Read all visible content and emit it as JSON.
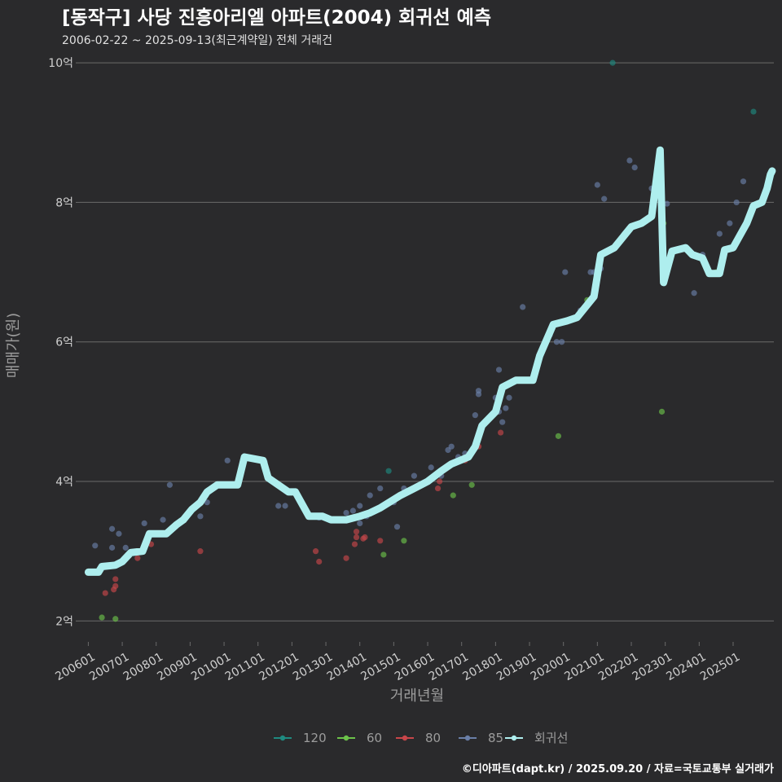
{
  "header": {
    "title": "[동작구] 사당 진흥아리엘 아파트(2004) 회귀선 예측",
    "subtitle": "2006-02-22 ~ 2025-09-13(최근계약일) 전체 거래건"
  },
  "footer": {
    "credit": "©디아파트(dapt.kr) / 2025.09.20 / 자료=국토교통부 실거래가"
  },
  "colors": {
    "background": "#2a2a2c",
    "grid": "#6a6a6a",
    "s120": "#1f8a80",
    "s60": "#6cc24a",
    "s80": "#c8464a",
    "s85": "#6a7fa8",
    "regression": "#aeeeee"
  },
  "chart_data": {
    "type": "scatter",
    "title": "[동작구] 사당 진흥아리엘 아파트(2004) 회귀선 예측",
    "subtitle": "2006-02-22 ~ 2025-09-13(최근계약일) 전체 거래건",
    "xlabel": "거래년월",
    "ylabel": "매매가(원)",
    "ylim": [
      1.7,
      10.2
    ],
    "yticks": [
      2,
      4,
      6,
      8,
      10
    ],
    "ytick_labels": [
      "2억",
      "4억",
      "6억",
      "8억",
      "10억"
    ],
    "xlim": [
      2005.75,
      2026.2
    ],
    "xticks": [
      2006,
      2007,
      2008,
      2009,
      2010,
      2011,
      2012,
      2013,
      2014,
      2015,
      2016,
      2017,
      2018,
      2019,
      2020,
      2021,
      2022,
      2023,
      2024,
      2025
    ],
    "xtick_labels": [
      "200601",
      "200701",
      "200801",
      "200901",
      "201001",
      "201101",
      "201201",
      "201301",
      "201401",
      "201501",
      "201601",
      "201701",
      "201801",
      "201901",
      "202001",
      "202101",
      "202201",
      "202301",
      "202401",
      "202501"
    ],
    "grid": true,
    "legend_position": "bottom",
    "series": [
      {
        "name": "120",
        "points": [
          [
            2014.85,
            4.15
          ],
          [
            2021.45,
            10.0
          ],
          [
            2025.6,
            9.3
          ]
        ]
      },
      {
        "name": "60",
        "points": [
          [
            2006.4,
            2.05
          ],
          [
            2006.8,
            2.03
          ],
          [
            2007.2,
            2.95
          ],
          [
            2014.7,
            2.95
          ],
          [
            2015.3,
            3.15
          ],
          [
            2016.75,
            3.8
          ],
          [
            2017.3,
            3.95
          ],
          [
            2019.85,
            4.65
          ],
          [
            2020.7,
            6.6
          ],
          [
            2022.9,
            5.0
          ],
          [
            2022.95,
            7.7
          ],
          [
            2024.5,
            7.0
          ]
        ]
      },
      {
        "name": "80",
        "points": [
          [
            2006.5,
            2.4
          ],
          [
            2006.75,
            2.45
          ],
          [
            2006.8,
            2.5
          ],
          [
            2006.8,
            2.6
          ],
          [
            2007.45,
            2.9
          ],
          [
            2007.85,
            3.1
          ],
          [
            2009.3,
            3.0
          ],
          [
            2012.7,
            3.0
          ],
          [
            2012.8,
            2.85
          ],
          [
            2013.6,
            2.9
          ],
          [
            2013.85,
            3.1
          ],
          [
            2013.9,
            3.2
          ],
          [
            2013.9,
            3.28
          ],
          [
            2014.1,
            3.18
          ],
          [
            2014.15,
            3.2
          ],
          [
            2014.6,
            3.15
          ],
          [
            2016.3,
            3.9
          ],
          [
            2016.35,
            4.0
          ],
          [
            2017.1,
            4.3
          ],
          [
            2017.5,
            4.5
          ],
          [
            2018.15,
            4.7
          ]
        ]
      },
      {
        "name": "85",
        "points": [
          [
            2006.2,
            3.08
          ],
          [
            2006.7,
            3.05
          ],
          [
            2006.9,
            3.25
          ],
          [
            2006.7,
            3.32
          ],
          [
            2007.1,
            3.05
          ],
          [
            2007.65,
            3.4
          ],
          [
            2008.2,
            3.45
          ],
          [
            2008.4,
            3.95
          ],
          [
            2009.3,
            3.5
          ],
          [
            2009.5,
            3.7
          ],
          [
            2010.1,
            4.3
          ],
          [
            2010.6,
            4.35
          ],
          [
            2011.2,
            4.28
          ],
          [
            2011.6,
            3.65
          ],
          [
            2011.8,
            3.65
          ],
          [
            2012.8,
            3.48
          ],
          [
            2013.1,
            3.45
          ],
          [
            2013.6,
            3.55
          ],
          [
            2013.8,
            3.58
          ],
          [
            2014.0,
            3.65
          ],
          [
            2014.0,
            3.4
          ],
          [
            2014.2,
            3.5
          ],
          [
            2014.3,
            3.8
          ],
          [
            2014.5,
            3.6
          ],
          [
            2014.6,
            3.9
          ],
          [
            2015.0,
            3.7
          ],
          [
            2015.1,
            3.35
          ],
          [
            2015.3,
            3.9
          ],
          [
            2015.6,
            4.08
          ],
          [
            2016.1,
            4.2
          ],
          [
            2016.4,
            4.08
          ],
          [
            2016.6,
            4.45
          ],
          [
            2016.7,
            4.5
          ],
          [
            2016.9,
            4.35
          ],
          [
            2017.1,
            4.4
          ],
          [
            2017.4,
            4.95
          ],
          [
            2017.5,
            5.25
          ],
          [
            2017.5,
            5.3
          ],
          [
            2017.8,
            4.9
          ],
          [
            2018.0,
            5.2
          ],
          [
            2018.1,
            5.0
          ],
          [
            2018.1,
            5.6
          ],
          [
            2018.2,
            4.85
          ],
          [
            2018.3,
            5.05
          ],
          [
            2018.4,
            5.2
          ],
          [
            2018.55,
            5.45
          ],
          [
            2018.8,
            6.5
          ],
          [
            2019.6,
            6.1
          ],
          [
            2019.8,
            6.0
          ],
          [
            2019.95,
            6.0
          ],
          [
            2020.05,
            7.0
          ],
          [
            2020.5,
            6.45
          ],
          [
            2020.8,
            7.0
          ],
          [
            2020.9,
            7.0
          ],
          [
            2021.0,
            8.25
          ],
          [
            2021.1,
            7.05
          ],
          [
            2021.2,
            8.05
          ],
          [
            2021.95,
            8.6
          ],
          [
            2022.1,
            8.5
          ],
          [
            2022.6,
            8.2
          ],
          [
            2023.05,
            7.98
          ],
          [
            2023.85,
            6.7
          ],
          [
            2024.1,
            7.25
          ],
          [
            2024.6,
            7.55
          ],
          [
            2024.9,
            7.7
          ],
          [
            2025.1,
            8.0
          ],
          [
            2025.3,
            8.3
          ]
        ]
      },
      {
        "name": "회귀선",
        "points": [
          [
            2006.0,
            2.7
          ],
          [
            2006.3,
            2.7
          ],
          [
            2006.4,
            2.78
          ],
          [
            2006.8,
            2.8
          ],
          [
            2007.0,
            2.85
          ],
          [
            2007.25,
            2.98
          ],
          [
            2007.6,
            3.0
          ],
          [
            2007.8,
            3.25
          ],
          [
            2008.3,
            3.25
          ],
          [
            2008.6,
            3.38
          ],
          [
            2008.8,
            3.45
          ],
          [
            2009.05,
            3.6
          ],
          [
            2009.3,
            3.7
          ],
          [
            2009.5,
            3.85
          ],
          [
            2009.8,
            3.95
          ],
          [
            2010.4,
            3.95
          ],
          [
            2010.6,
            4.35
          ],
          [
            2011.15,
            4.3
          ],
          [
            2011.3,
            4.05
          ],
          [
            2011.9,
            3.85
          ],
          [
            2012.1,
            3.85
          ],
          [
            2012.5,
            3.5
          ],
          [
            2012.9,
            3.5
          ],
          [
            2013.15,
            3.45
          ],
          [
            2013.6,
            3.45
          ],
          [
            2014.0,
            3.5
          ],
          [
            2014.3,
            3.55
          ],
          [
            2014.6,
            3.62
          ],
          [
            2015.2,
            3.8
          ],
          [
            2015.6,
            3.9
          ],
          [
            2016.0,
            4.0
          ],
          [
            2016.4,
            4.15
          ],
          [
            2016.7,
            4.25
          ],
          [
            2017.2,
            4.35
          ],
          [
            2017.4,
            4.5
          ],
          [
            2017.6,
            4.8
          ],
          [
            2018.0,
            5.0
          ],
          [
            2018.2,
            5.35
          ],
          [
            2018.6,
            5.45
          ],
          [
            2019.1,
            5.45
          ],
          [
            2019.3,
            5.8
          ],
          [
            2019.7,
            6.25
          ],
          [
            2020.1,
            6.3
          ],
          [
            2020.4,
            6.35
          ],
          [
            2020.9,
            6.65
          ],
          [
            2021.1,
            7.25
          ],
          [
            2021.5,
            7.35
          ],
          [
            2022.0,
            7.65
          ],
          [
            2022.3,
            7.7
          ],
          [
            2022.6,
            7.8
          ],
          [
            2022.85,
            8.75
          ],
          [
            2022.95,
            6.85
          ],
          [
            2023.2,
            7.3
          ],
          [
            2023.6,
            7.35
          ],
          [
            2023.8,
            7.25
          ],
          [
            2024.1,
            7.2
          ],
          [
            2024.3,
            6.98
          ],
          [
            2024.6,
            6.98
          ],
          [
            2024.75,
            7.32
          ],
          [
            2025.0,
            7.35
          ],
          [
            2025.4,
            7.7
          ],
          [
            2025.6,
            7.95
          ],
          [
            2025.85,
            8.0
          ],
          [
            2026.0,
            8.2
          ],
          [
            2026.1,
            8.4
          ],
          [
            2026.15,
            8.45
          ]
        ]
      }
    ]
  }
}
